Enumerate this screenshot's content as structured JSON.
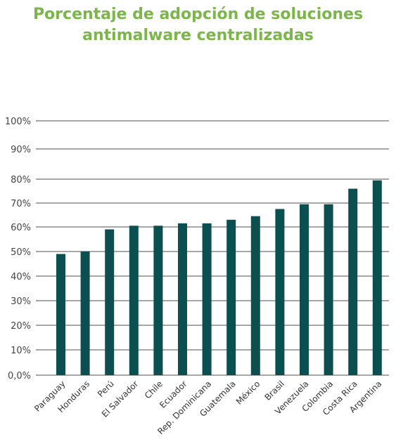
{
  "chart_data": {
    "type": "bar",
    "title_lines": [
      "Porcentaje de adopción de soluciones",
      "antimalware centralizadas"
    ],
    "title": "Porcentaje de adopción de soluciones antimalware centralizadas",
    "xlabel": "",
    "ylabel": "",
    "categories": [
      "Paraguay",
      "Honduras",
      "Perú",
      "El Salvador",
      "Chile",
      "Ecuador",
      "Rep. Dominicana",
      "Guatemala",
      "México",
      "Brasil",
      "Venezuela",
      "Colombia",
      "Costa Rica",
      "Argentina"
    ],
    "values": [
      49,
      50,
      59,
      60.5,
      60.5,
      61.5,
      61.5,
      63,
      64.5,
      67.5,
      69.5,
      69.5,
      76,
      79.5
    ],
    "yticks": [
      {
        "value": 0,
        "label": "0,0%"
      },
      {
        "value": 10,
        "label": "10%"
      },
      {
        "value": 20,
        "label": "20%"
      },
      {
        "value": 30,
        "label": "30%"
      },
      {
        "value": 40,
        "label": "40%"
      },
      {
        "value": 50,
        "label": "50%"
      },
      {
        "value": 60,
        "label": "60%"
      },
      {
        "value": 70,
        "label": "70%"
      },
      {
        "value": 80,
        "label": "80%"
      },
      {
        "value": 90,
        "label": "90%"
      },
      {
        "value": 100,
        "label": "100%"
      }
    ],
    "ylim": [
      0,
      100
    ],
    "grid": true,
    "legend": "none",
    "colors": {
      "bar": "#0b4f50",
      "grid": "#8a8a8a",
      "title": "#7ab648"
    }
  }
}
